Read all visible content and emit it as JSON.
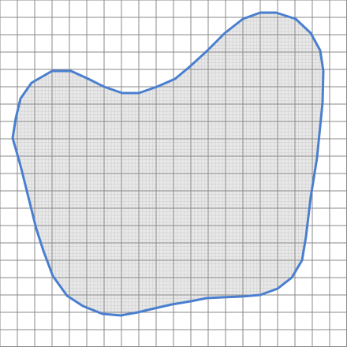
{
  "diagram": {
    "type": "area-estimation-grid",
    "grid": {
      "major_cells": 20,
      "minor_subdivisions": 5,
      "major_line_color": "#8a8a8a",
      "minor_line_color": "#9b9b9b",
      "background": "#ffffff"
    },
    "shape": {
      "fill_color": "#e8e8e8",
      "outline_color": "#4a7fcf"
    }
  }
}
